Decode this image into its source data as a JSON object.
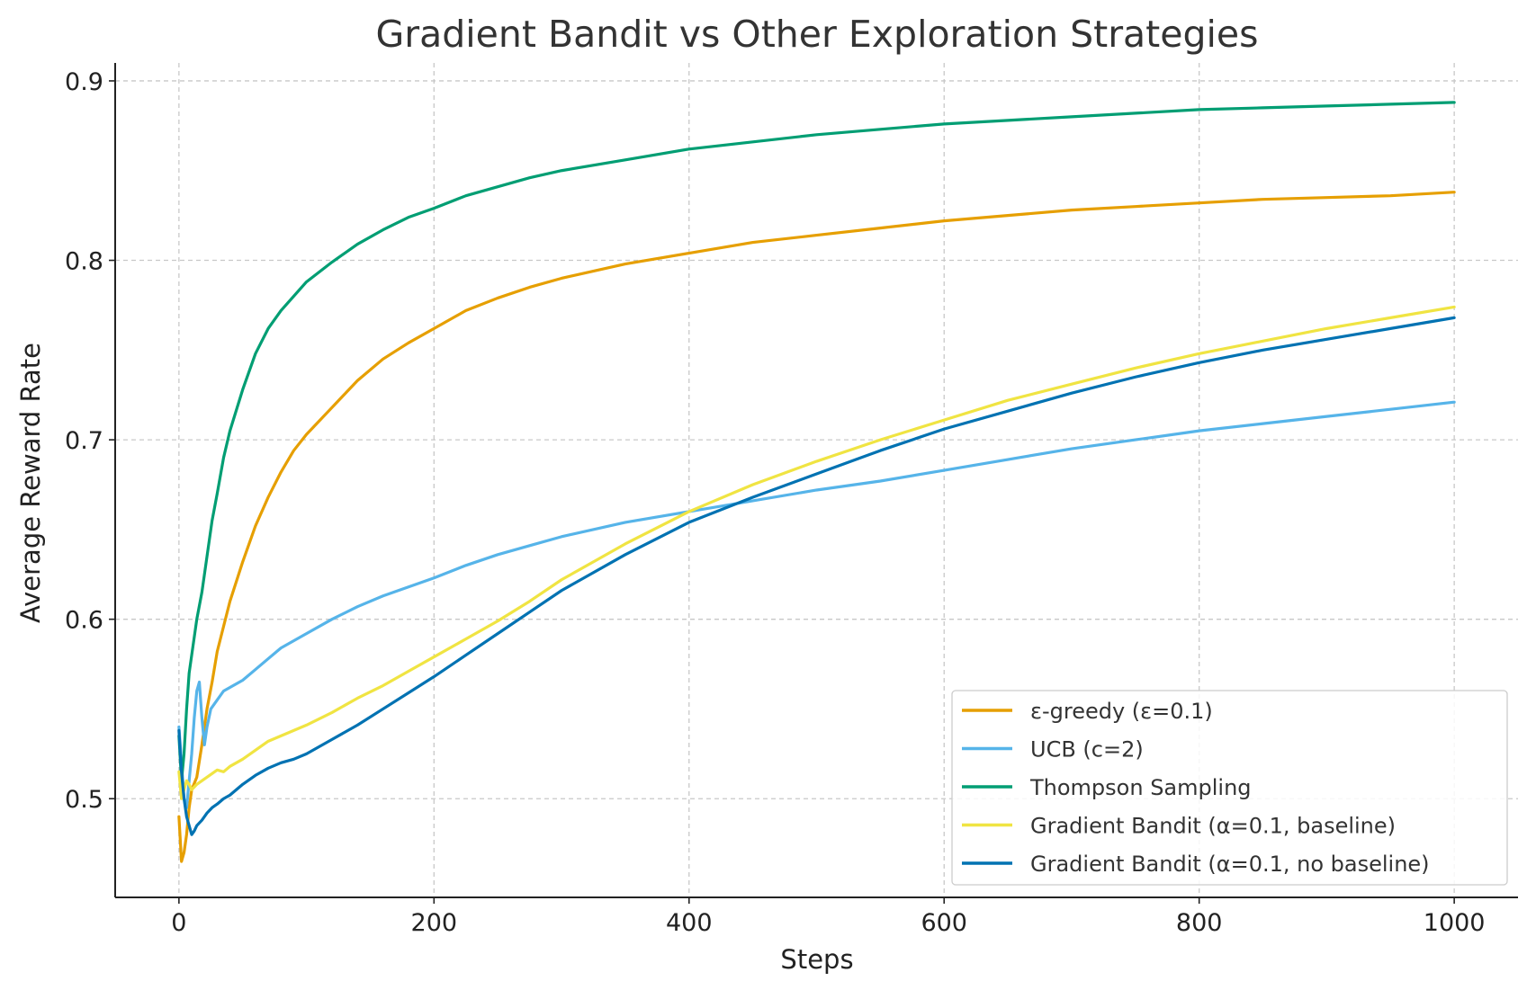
{
  "chart_data": {
    "type": "line",
    "title": "Gradient Bandit vs Other Exploration Strategies",
    "xlabel": "Steps",
    "ylabel": "Average Reward Rate",
    "xlim": [
      -50,
      1050
    ],
    "ylim": [
      0.445,
      0.91
    ],
    "xticks": [
      0,
      200,
      400,
      600,
      800,
      1000
    ],
    "yticks": [
      0.5,
      0.6,
      0.7,
      0.8,
      0.9
    ],
    "xtick_labels": [
      "0",
      "200",
      "400",
      "600",
      "800",
      "1000"
    ],
    "ytick_labels": [
      "0.5",
      "0.6",
      "0.7",
      "0.8",
      "0.9"
    ],
    "grid": true,
    "legend_position": "bottom-right",
    "series": [
      {
        "name": "ε-greedy (ε=0.1)",
        "color": "#E69F00",
        "x": [
          0,
          2,
          4,
          6,
          8,
          10,
          14,
          18,
          22,
          26,
          30,
          35,
          40,
          50,
          60,
          70,
          80,
          90,
          100,
          120,
          140,
          160,
          180,
          200,
          225,
          250,
          275,
          300,
          350,
          400,
          450,
          500,
          550,
          600,
          650,
          700,
          750,
          800,
          850,
          900,
          950,
          1000
        ],
        "y": [
          0.49,
          0.465,
          0.47,
          0.48,
          0.495,
          0.505,
          0.512,
          0.53,
          0.55,
          0.565,
          0.582,
          0.596,
          0.61,
          0.632,
          0.652,
          0.668,
          0.682,
          0.694,
          0.703,
          0.718,
          0.733,
          0.745,
          0.754,
          0.762,
          0.772,
          0.779,
          0.785,
          0.79,
          0.798,
          0.804,
          0.81,
          0.814,
          0.818,
          0.822,
          0.825,
          0.828,
          0.83,
          0.832,
          0.834,
          0.835,
          0.836,
          0.838
        ]
      },
      {
        "name": "UCB (c=2)",
        "color": "#56B4E9",
        "x": [
          0,
          2,
          4,
          6,
          8,
          10,
          12,
          14,
          16,
          18,
          20,
          22,
          25,
          30,
          35,
          40,
          50,
          60,
          70,
          80,
          90,
          100,
          120,
          140,
          160,
          180,
          200,
          225,
          250,
          275,
          300,
          350,
          400,
          450,
          500,
          550,
          600,
          650,
          700,
          750,
          800,
          850,
          900,
          950,
          1000
        ],
        "y": [
          0.54,
          0.52,
          0.5,
          0.495,
          0.51,
          0.525,
          0.545,
          0.56,
          0.565,
          0.545,
          0.53,
          0.54,
          0.55,
          0.555,
          0.56,
          0.562,
          0.566,
          0.572,
          0.578,
          0.584,
          0.588,
          0.592,
          0.6,
          0.607,
          0.613,
          0.618,
          0.623,
          0.63,
          0.636,
          0.641,
          0.646,
          0.654,
          0.66,
          0.666,
          0.672,
          0.677,
          0.683,
          0.689,
          0.695,
          0.7,
          0.705,
          0.709,
          0.713,
          0.717,
          0.721
        ]
      },
      {
        "name": "Thompson Sampling",
        "color": "#009E73",
        "x": [
          0,
          2,
          4,
          6,
          8,
          10,
          14,
          18,
          22,
          26,
          30,
          35,
          40,
          50,
          60,
          70,
          80,
          90,
          100,
          120,
          140,
          160,
          180,
          200,
          225,
          250,
          275,
          300,
          350,
          400,
          450,
          500,
          550,
          600,
          650,
          700,
          750,
          800,
          850,
          900,
          950,
          1000
        ],
        "y": [
          0.535,
          0.51,
          0.525,
          0.55,
          0.57,
          0.58,
          0.6,
          0.615,
          0.635,
          0.655,
          0.67,
          0.69,
          0.705,
          0.728,
          0.748,
          0.762,
          0.772,
          0.78,
          0.788,
          0.799,
          0.809,
          0.817,
          0.824,
          0.829,
          0.836,
          0.841,
          0.846,
          0.85,
          0.856,
          0.862,
          0.866,
          0.87,
          0.873,
          0.876,
          0.878,
          0.88,
          0.882,
          0.884,
          0.885,
          0.886,
          0.887,
          0.888
        ]
      },
      {
        "name": "Gradient Bandit (α=0.1, baseline)",
        "color": "#F0E442",
        "x": [
          0,
          2,
          4,
          6,
          8,
          10,
          14,
          18,
          22,
          26,
          30,
          35,
          40,
          50,
          60,
          70,
          80,
          90,
          100,
          120,
          140,
          160,
          180,
          200,
          225,
          250,
          275,
          300,
          350,
          400,
          450,
          500,
          550,
          600,
          650,
          700,
          750,
          800,
          850,
          900,
          950,
          1000
        ],
        "y": [
          0.515,
          0.5,
          0.505,
          0.51,
          0.508,
          0.505,
          0.508,
          0.51,
          0.512,
          0.514,
          0.516,
          0.515,
          0.518,
          0.522,
          0.527,
          0.532,
          0.535,
          0.538,
          0.541,
          0.548,
          0.556,
          0.563,
          0.571,
          0.579,
          0.589,
          0.599,
          0.61,
          0.622,
          0.642,
          0.66,
          0.675,
          0.688,
          0.7,
          0.711,
          0.722,
          0.731,
          0.74,
          0.748,
          0.755,
          0.762,
          0.768,
          0.774
        ]
      },
      {
        "name": "Gradient Bandit (α=0.1, no baseline)",
        "color": "#0072B2",
        "x": [
          0,
          2,
          4,
          6,
          8,
          10,
          12,
          14,
          18,
          22,
          26,
          30,
          35,
          40,
          50,
          60,
          70,
          80,
          90,
          100,
          120,
          140,
          160,
          180,
          200,
          225,
          250,
          275,
          300,
          350,
          400,
          450,
          500,
          550,
          600,
          650,
          700,
          750,
          800,
          850,
          900,
          950,
          1000
        ],
        "y": [
          0.538,
          0.515,
          0.5,
          0.49,
          0.485,
          0.48,
          0.482,
          0.485,
          0.488,
          0.492,
          0.495,
          0.497,
          0.5,
          0.502,
          0.508,
          0.513,
          0.517,
          0.52,
          0.522,
          0.525,
          0.533,
          0.541,
          0.55,
          0.559,
          0.568,
          0.58,
          0.592,
          0.604,
          0.616,
          0.636,
          0.654,
          0.668,
          0.681,
          0.694,
          0.706,
          0.716,
          0.726,
          0.735,
          0.743,
          0.75,
          0.756,
          0.762,
          0.768
        ]
      }
    ]
  }
}
